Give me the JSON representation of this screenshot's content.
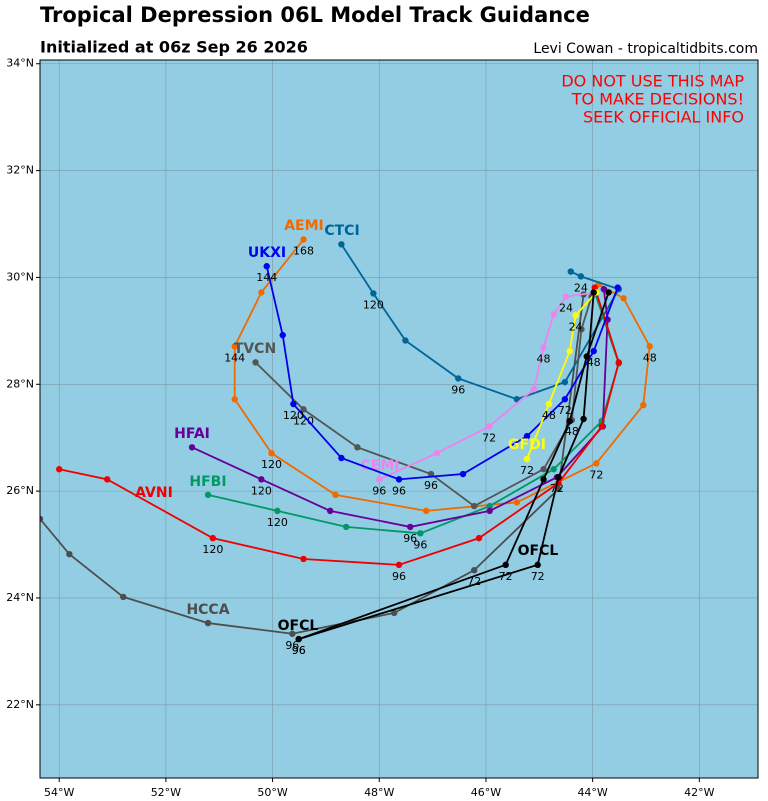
{
  "chart_data": {
    "type": "map",
    "title": "Tropical Depression 06L Model Track Guidance",
    "subtitle": "Initialized at 06z Sep 26 2026",
    "credit": "Levi Cowan - tropicaltidbits.com",
    "warning": [
      "DO NOT USE THIS MAP",
      "TO MAKE DECISIONS!",
      "SEEK OFFICIAL INFO"
    ],
    "warning_color": "#ff0000",
    "background": "#93cde3",
    "grid": true,
    "xlim": [
      -54.36,
      -40.9
    ],
    "ylim": [
      20.63,
      34.07
    ],
    "xticks": [
      {
        "value": -54,
        "label": "54°W"
      },
      {
        "value": -52,
        "label": "52°W"
      },
      {
        "value": -50,
        "label": "50°W"
      },
      {
        "value": -48,
        "label": "48°W"
      },
      {
        "value": -46,
        "label": "46°W"
      },
      {
        "value": -44,
        "label": "44°W"
      },
      {
        "value": -42,
        "label": "42°W"
      }
    ],
    "yticks": [
      {
        "value": 22,
        "label": "22°N"
      },
      {
        "value": 24,
        "label": "24°N"
      },
      {
        "value": 26,
        "label": "26°N"
      },
      {
        "value": 28,
        "label": "28°N"
      },
      {
        "value": 30,
        "label": "30°N"
      },
      {
        "value": 32,
        "label": "32°N"
      },
      {
        "value": 34,
        "label": "34°N"
      }
    ],
    "series": [
      {
        "name": "HCCA",
        "color": "#4d4d4d",
        "x": [
          -44.17,
          -44.64,
          -46.22,
          -47.72,
          -49.63,
          -51.21,
          -52.8,
          -53.81,
          -54.36
        ],
        "y": [
          29.68,
          26.04,
          24.52,
          23.72,
          23.33,
          23.53,
          24.02,
          24.82,
          25.48
        ],
        "hour_labels": [
          null,
          null,
          72,
          null,
          96,
          null,
          null,
          null,
          null
        ]
      },
      {
        "name": "AEMI",
        "color": "#f06a00",
        "x": [
          -43.89,
          -43.42,
          -42.93,
          -43.05,
          -43.93,
          -45.42,
          -47.12,
          -48.82,
          -50.02,
          -50.71,
          -50.71,
          -50.21,
          -49.42
        ],
        "y": [
          29.87,
          29.61,
          28.71,
          27.61,
          26.52,
          25.79,
          25.63,
          25.93,
          26.71,
          27.72,
          28.71,
          29.72,
          30.71
        ],
        "hour_labels": [
          null,
          null,
          48,
          null,
          72,
          null,
          null,
          null,
          120,
          null,
          144,
          null,
          168
        ]
      },
      {
        "name": "CTCI",
        "color": "#006699",
        "x": [
          -44.41,
          -44.22,
          -43.51,
          -44.52,
          -45.42,
          -46.52,
          -47.51,
          -48.11,
          -48.71
        ],
        "y": [
          30.11,
          30.02,
          29.78,
          28.04,
          27.72,
          28.11,
          28.82,
          29.7,
          30.62
        ],
        "hour_labels": [
          null,
          24,
          null,
          null,
          null,
          96,
          null,
          120,
          null
        ]
      },
      {
        "name": "TVCN",
        "color": "#555555",
        "x": [
          -44.02,
          -44.21,
          -44.39,
          -44.92,
          -46.22,
          -47.03,
          -48.41,
          -49.42,
          -50.32
        ],
        "y": [
          29.64,
          29.03,
          27.33,
          26.41,
          25.72,
          26.32,
          26.82,
          27.53,
          28.41
        ],
        "hour_labels": [
          null,
          null,
          48,
          null,
          null,
          96,
          null,
          120,
          null
        ]
      },
      {
        "name": "HFBI",
        "color": "#009966",
        "x": [
          -43.96,
          -43.51,
          -43.83,
          -44.73,
          -45.93,
          -47.23,
          -48.62,
          -49.91,
          -51.21
        ],
        "y": [
          29.72,
          28.39,
          27.31,
          26.41,
          25.72,
          25.21,
          25.33,
          25.63,
          25.93
        ],
        "hour_labels": [
          null,
          null,
          null,
          null,
          null,
          96,
          null,
          120,
          null
        ]
      },
      {
        "name": "HFAI",
        "color": "#660099",
        "x": [
          -43.79,
          -43.72,
          -43.81,
          -44.67,
          -45.93,
          -47.42,
          -48.92,
          -50.21,
          -51.51
        ],
        "y": [
          29.78,
          29.21,
          27.21,
          26.26,
          25.63,
          25.33,
          25.63,
          26.22,
          26.82
        ],
        "hour_labels": [
          null,
          null,
          null,
          72,
          null,
          96,
          null,
          120,
          null
        ]
      },
      {
        "name": "AVNI",
        "color": "#ee0000",
        "x": [
          -43.96,
          -43.51,
          -43.83,
          -44.64,
          -46.13,
          -47.63,
          -49.42,
          -51.12,
          -53.1,
          -54.0
        ],
        "y": [
          29.81,
          28.41,
          27.21,
          26.15,
          25.12,
          24.62,
          24.73,
          25.12,
          26.22,
          26.41
        ],
        "hour_labels": [
          null,
          null,
          null,
          null,
          null,
          96,
          null,
          120,
          null,
          null
        ]
      },
      {
        "name": "CEMI",
        "color": "#ee82ee",
        "x": [
          -43.94,
          -44.5,
          -44.73,
          -44.92,
          -45.1,
          -45.94,
          -46.92,
          -48.0
        ],
        "y": [
          29.72,
          29.64,
          29.31,
          28.69,
          27.91,
          27.21,
          26.71,
          26.22
        ],
        "hour_labels": [
          null,
          24,
          null,
          48,
          null,
          72,
          null,
          96
        ]
      },
      {
        "name": "UKXI",
        "color": "#0000ee",
        "x": [
          -43.53,
          -43.98,
          -44.52,
          -45.23,
          -46.43,
          -47.63,
          -48.71,
          -49.61,
          -49.81,
          -50.11
        ],
        "y": [
          29.81,
          28.62,
          27.72,
          27.03,
          26.32,
          26.22,
          26.62,
          27.63,
          28.92,
          30.21
        ],
        "hour_labels": [
          null,
          48,
          72,
          null,
          null,
          96,
          null,
          120,
          null,
          144
        ]
      },
      {
        "name": "GFDI",
        "color": "#ffff00",
        "x": [
          -43.93,
          -44.32,
          -44.43,
          -44.82,
          -45.23
        ],
        "y": [
          29.72,
          29.29,
          28.62,
          27.63,
          26.6
        ],
        "hour_labels": [
          null,
          24,
          null,
          48,
          72
        ]
      },
      {
        "name": "OFCL",
        "color": "#000000",
        "x": [
          -43.7,
          -44.11,
          -44.43,
          -44.92,
          -45.63,
          -49.51
        ],
        "y": [
          29.72,
          28.52,
          27.31,
          26.22,
          24.62,
          23.23
        ],
        "hour_labels": [
          null,
          null,
          null,
          null,
          72,
          96
        ]
      },
      {
        "name": "OFCL",
        "color": "#000000",
        "x": [
          -43.98,
          -44.17,
          -44.64,
          -45.03,
          -49.51
        ],
        "y": [
          29.72,
          27.35,
          26.26,
          24.62,
          23.23
        ],
        "hour_labels": [
          null,
          null,
          null,
          72,
          96
        ]
      }
    ]
  }
}
